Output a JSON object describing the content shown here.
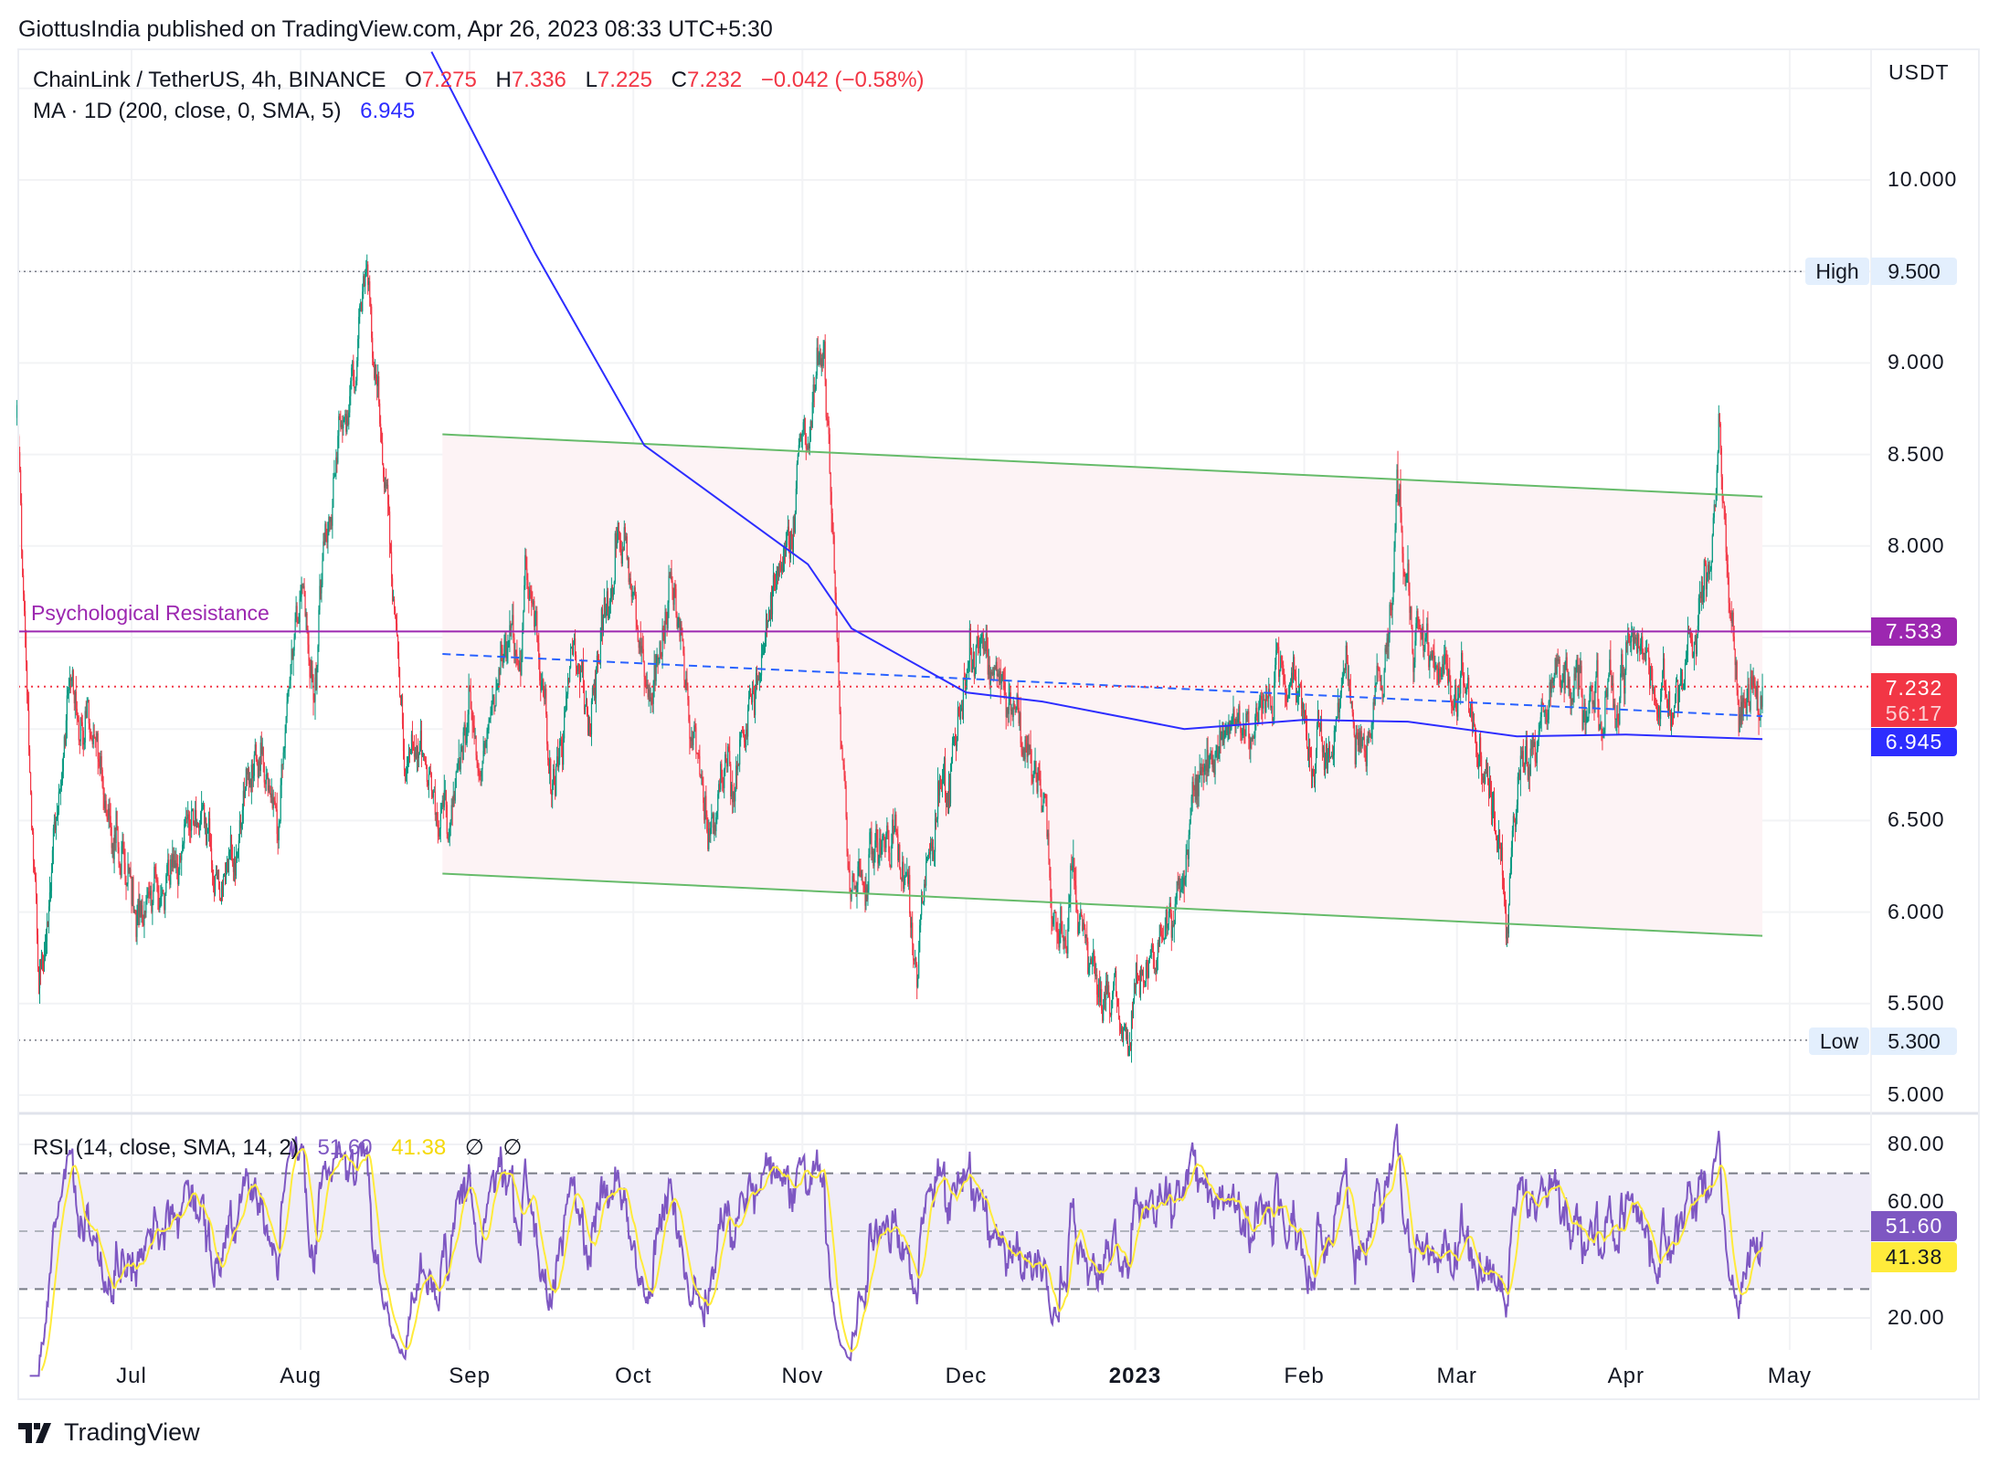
{
  "published": "GiottusIndia published on TradingView.com, Apr 26, 2023 08:33 UTC+5:30",
  "legend": {
    "symbol": "ChainLink / TetherUS, 4h, BINANCE",
    "o_label": "O",
    "o": "7.275",
    "h_label": "H",
    "h": "7.336",
    "l_label": "L",
    "l": "7.225",
    "c_label": "C",
    "c": "7.232",
    "change": "−0.042 (−0.58%)",
    "ma_label": "MA · 1D (200, close, 0, SMA, 5)",
    "ma_value": "6.945"
  },
  "rsi_legend": {
    "label": "RSI (14, close, SMA, 14, 2)",
    "rsi": "51.60",
    "sma": "41.38",
    "na1": "∅",
    "na2": "∅"
  },
  "axis": {
    "currency": "USDT",
    "price_ticks": [
      "10.000",
      "9.000",
      "8.500",
      "8.000",
      "6.500",
      "6.000",
      "5.500",
      "5.000"
    ],
    "rsi_ticks": [
      "80.00",
      "60.00",
      "20.00"
    ],
    "date_ticks": [
      {
        "label": "Jul",
        "date": "2022-07-01"
      },
      {
        "label": "Aug",
        "date": "2022-08-01"
      },
      {
        "label": "Sep",
        "date": "2022-09-01"
      },
      {
        "label": "Oct",
        "date": "2022-10-01"
      },
      {
        "label": "Nov",
        "date": "2022-11-01"
      },
      {
        "label": "Dec",
        "date": "2022-12-01"
      },
      {
        "label": "2023",
        "date": "2023-01-01",
        "bold": true
      },
      {
        "label": "Feb",
        "date": "2023-02-01"
      },
      {
        "label": "Mar",
        "date": "2023-03-01"
      },
      {
        "label": "Apr",
        "date": "2023-04-01"
      },
      {
        "label": "May",
        "date": "2023-05-01"
      }
    ]
  },
  "badges": {
    "high_label": "High",
    "high_value": "9.500",
    "low_label": "Low",
    "low_value": "5.300",
    "resistance_value": "7.533",
    "last_price": "7.232",
    "countdown": "56:17",
    "ma_value": "6.945",
    "rsi_value": "51.60",
    "rsi_sma_value": "41.38"
  },
  "annotations": {
    "resistance_label": "Psychological Resistance"
  },
  "colors": {
    "up": "#089981",
    "down": "#f23645",
    "ma": "#2d2dff",
    "channel": "#66bb6a",
    "channel_fill": "#fdf3f5",
    "resistance": "#9c27b0",
    "rsi": "#7e57c2",
    "rsi_sma": "#ffeb3b",
    "rsi_band": "#efecf8",
    "trend_dashed": "#2962ff"
  },
  "footer": {
    "brand": "TradingView"
  },
  "chart_data": {
    "type": "candlestick",
    "symbol": "LINK/USDT",
    "interval": "4h",
    "ylim": [
      4.9,
      10.5
    ],
    "y_axis_unit": "USDT",
    "grid": true,
    "price_path": [
      [
        "2022-06-10",
        8.7
      ],
      [
        "2022-06-14",
        5.5
      ],
      [
        "2022-06-20",
        7.2
      ],
      [
        "2022-06-25",
        6.8
      ],
      [
        "2022-07-01",
        6.2
      ],
      [
        "2022-07-06",
        6.0
      ],
      [
        "2022-07-12",
        6.6
      ],
      [
        "2022-07-18",
        6.0
      ],
      [
        "2022-07-25",
        7.0
      ],
      [
        "2022-07-28",
        6.3
      ],
      [
        "2022-08-01",
        7.8
      ],
      [
        "2022-08-04",
        7.5
      ],
      [
        "2022-08-08",
        8.6
      ],
      [
        "2022-08-13",
        9.3
      ],
      [
        "2022-08-17",
        8.3
      ],
      [
        "2022-08-20",
        7.0
      ],
      [
        "2022-08-23",
        6.9
      ],
      [
        "2022-08-28",
        6.5
      ],
      [
        "2022-09-01",
        7.0
      ],
      [
        "2022-09-03",
        6.8
      ],
      [
        "2022-09-08",
        7.6
      ],
      [
        "2022-09-12",
        7.9
      ],
      [
        "2022-09-16",
        6.8
      ],
      [
        "2022-09-20",
        7.5
      ],
      [
        "2022-09-23",
        7.0
      ],
      [
        "2022-09-28",
        8.1
      ],
      [
        "2022-10-04",
        7.3
      ],
      [
        "2022-10-08",
        7.8
      ],
      [
        "2022-10-14",
        6.6
      ],
      [
        "2022-10-20",
        6.8
      ],
      [
        "2022-10-25",
        7.5
      ],
      [
        "2022-10-29",
        8.0
      ],
      [
        "2022-11-03",
        8.8
      ],
      [
        "2022-11-05",
        9.3
      ],
      [
        "2022-11-08",
        7.0
      ],
      [
        "2022-11-10",
        6.1
      ],
      [
        "2022-11-14",
        6.5
      ],
      [
        "2022-11-20",
        6.2
      ],
      [
        "2022-11-22",
        5.7
      ],
      [
        "2022-11-25",
        6.5
      ],
      [
        "2022-11-29",
        7.0
      ],
      [
        "2022-12-01",
        7.4
      ],
      [
        "2022-12-04",
        7.5
      ],
      [
        "2022-12-10",
        7.0
      ],
      [
        "2022-12-14",
        6.8
      ],
      [
        "2022-12-17",
        6.0
      ],
      [
        "2022-12-20",
        6.0
      ],
      [
        "2022-12-24",
        5.9
      ],
      [
        "2022-12-28",
        5.5
      ],
      [
        "2022-12-31",
        5.5
      ],
      [
        "2023-01-05",
        5.8
      ],
      [
        "2023-01-08",
        6.0
      ],
      [
        "2023-01-12",
        6.6
      ],
      [
        "2023-01-16",
        7.0
      ],
      [
        "2023-01-22",
        7.1
      ],
      [
        "2023-01-27",
        7.3
      ],
      [
        "2023-02-01",
        7.2
      ],
      [
        "2023-02-05",
        7.0
      ],
      [
        "2023-02-08",
        7.3
      ],
      [
        "2023-02-12",
        6.9
      ],
      [
        "2023-02-16",
        7.3
      ],
      [
        "2023-02-18",
        8.2
      ],
      [
        "2023-02-21",
        7.7
      ],
      [
        "2023-02-25",
        7.4
      ],
      [
        "2023-03-01",
        7.2
      ],
      [
        "2023-03-04",
        6.9
      ],
      [
        "2023-03-07",
        6.8
      ],
      [
        "2023-03-10",
        6.0
      ],
      [
        "2023-03-13",
        6.8
      ],
      [
        "2023-03-16",
        7.0
      ],
      [
        "2023-03-20",
        7.3
      ],
      [
        "2023-03-23",
        7.4
      ],
      [
        "2023-03-27",
        6.9
      ],
      [
        "2023-04-01",
        7.3
      ],
      [
        "2023-04-04",
        7.4
      ],
      [
        "2023-04-10",
        7.2
      ],
      [
        "2023-04-14",
        7.6
      ],
      [
        "2023-04-17",
        8.1
      ],
      [
        "2023-04-18",
        8.6
      ],
      [
        "2023-04-20",
        7.8
      ],
      [
        "2023-04-22",
        7.0
      ],
      [
        "2023-04-26",
        7.232
      ]
    ],
    "ma_path": [
      [
        "2022-08-25",
        10.7
      ],
      [
        "2022-09-13",
        9.6
      ],
      [
        "2022-10-03",
        8.55
      ],
      [
        "2022-11-02",
        7.9
      ],
      [
        "2022-11-10",
        7.55
      ],
      [
        "2022-12-01",
        7.2
      ],
      [
        "2022-12-15",
        7.15
      ],
      [
        "2023-01-10",
        7.0
      ],
      [
        "2023-02-01",
        7.05
      ],
      [
        "2023-02-20",
        7.04
      ],
      [
        "2023-03-12",
        6.96
      ],
      [
        "2023-04-01",
        6.97
      ],
      [
        "2023-04-26",
        6.945
      ]
    ],
    "channel_upper": [
      [
        "2022-08-27",
        8.61
      ],
      [
        "2023-04-26",
        8.27
      ]
    ],
    "channel_lower": [
      [
        "2022-08-27",
        6.21
      ],
      [
        "2023-04-26",
        5.87
      ]
    ],
    "trend_dashed": [
      [
        "2022-08-27",
        7.41
      ],
      [
        "2023-04-26",
        7.07
      ]
    ],
    "resistance": 7.533,
    "high": 9.5,
    "low": 5.3,
    "last": 7.232,
    "rsi": {
      "ylim": [
        15,
        85
      ],
      "bands": [
        70,
        50,
        30
      ],
      "last": 51.6,
      "sma_last": 41.38
    }
  }
}
